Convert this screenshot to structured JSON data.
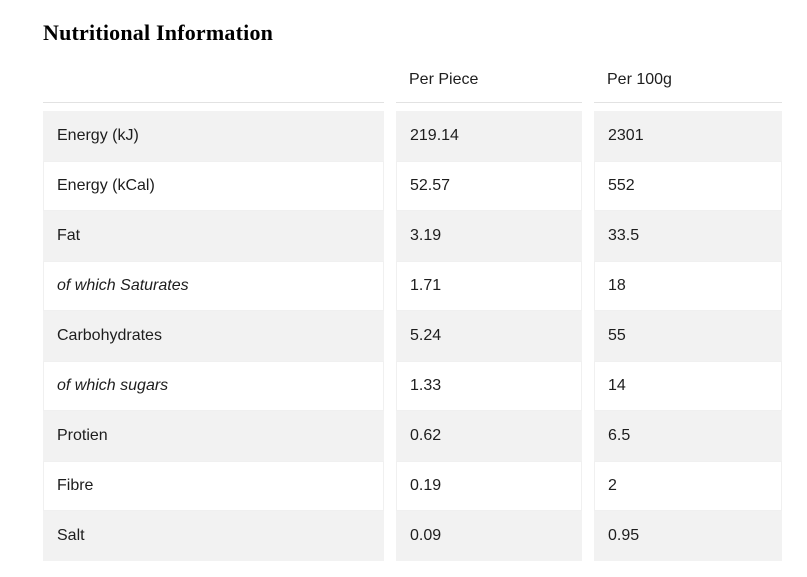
{
  "page": {
    "title": "Nutritional Information"
  },
  "table": {
    "columns": [
      "",
      "Per Piece",
      "Per 100g"
    ],
    "rows": [
      {
        "label": "Energy (kJ)",
        "per_piece": "219.14",
        "per_100g": "2301"
      },
      {
        "label": "Energy (kCal)",
        "per_piece": "52.57",
        "per_100g": "552"
      },
      {
        "label": "Fat",
        "per_piece": "3.19",
        "per_100g": "33.5"
      },
      {
        "label": "of which Saturates",
        "per_piece": "1.71",
        "per_100g": "18",
        "italic": true
      },
      {
        "label": "Carbohydrates",
        "per_piece": "5.24",
        "per_100g": "55"
      },
      {
        "label": "of which sugars",
        "per_piece": "1.33",
        "per_100g": "14",
        "italic": true
      },
      {
        "label": "Protien",
        "per_piece": "0.62",
        "per_100g": "6.5"
      },
      {
        "label": "Fibre",
        "per_piece": "0.19",
        "per_100g": "2"
      },
      {
        "label": "Salt",
        "per_piece": "0.09",
        "per_100g": "0.95"
      }
    ]
  },
  "colors": {
    "stripe_bg": "#f2f2f2",
    "header_border": "#e2e2e2",
    "text": "#1d1d1d"
  }
}
